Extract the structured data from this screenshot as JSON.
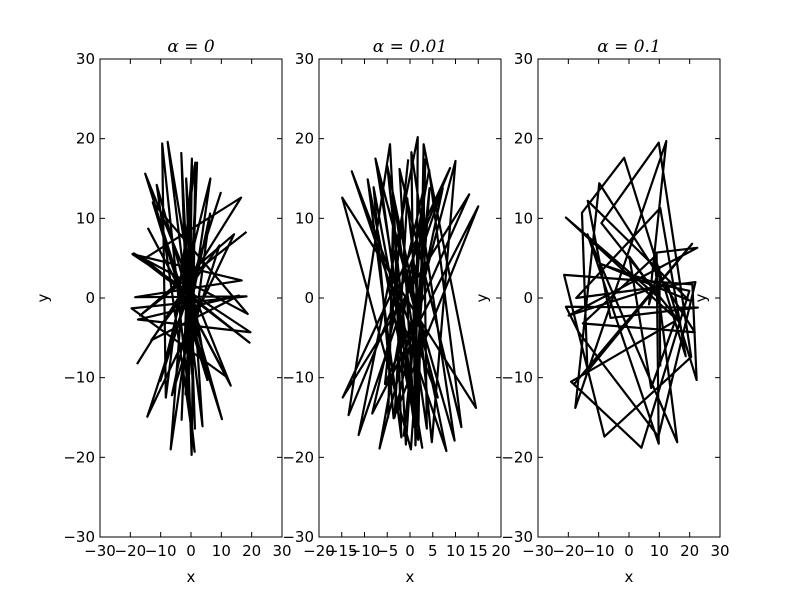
{
  "figure": {
    "background": "#ffffff",
    "line_color": "#000000"
  },
  "chart_data": [
    {
      "type": "line",
      "title": "α = 0",
      "xlabel": "x",
      "ylabel": "y",
      "xlim": [
        -30,
        30
      ],
      "ylim": [
        -30,
        30
      ],
      "xticks": [
        -30,
        -20,
        -10,
        0,
        10,
        20,
        30
      ],
      "yticks": [
        -30,
        -20,
        -10,
        0,
        10,
        20,
        30
      ],
      "grid": false,
      "series": [
        {
          "x": [
            -17.8,
            16.5,
            -15.5,
            19.3,
            -18.9,
            18.7,
            -12.6,
            5.4,
            -7.7,
            3.8,
            -1.6,
            1.3,
            -3.2,
            0.2,
            1.4,
            -8.3,
            -9.5,
            1.2,
            -11.3,
            10.2,
            -15.1,
            13.1,
            -14.1,
            11.7,
            -19.6,
            18.3,
            -18.4,
            16.7,
            -19.3,
            19.6,
            -17.5,
            15.8,
            -13.1,
            9.4,
            -6.3,
            6.3,
            -1.8,
            2.0,
            -0.6,
            0.3,
            -3.1,
            0.4,
            -6.7,
            6.4,
            -10.1,
            9.8,
            -14.4,
            14.2,
            -16.8,
            18.3
          ],
          "y": [
            -8.3,
            12.6,
            4.9,
            -5.6,
            5.6,
            -2.0,
            12.0,
            -10.3,
            19.6,
            -16.1,
            15.0,
            -16.4,
            18.2,
            -19.7,
            17.0,
            -12.5,
            19.4,
            -19.3,
            14.2,
            -15.2,
            15.6,
            -11.0,
            8.7,
            -9.9,
            -1.3,
            0.2,
            0.1,
            2.2,
            5.5,
            -4.3,
            -2.7,
            0.3,
            -5.3,
            6.6,
            -12.2,
            10.6,
            -12.1,
            17.0,
            -9.6,
            17.5,
            -15.3,
            16.6,
            -19.0,
            15.0,
            -10.4,
            13.2,
            -14.9,
            8.0,
            -2.2,
            8.3
          ]
        }
      ]
    },
    {
      "type": "line",
      "title": "α = 0.01",
      "xlabel": "x",
      "ylabel": "y",
      "xlim": [
        -20,
        20
      ],
      "ylim": [
        -30,
        30
      ],
      "xticks": [
        -20,
        -15,
        -10,
        -5,
        0,
        5,
        10,
        15,
        20
      ],
      "yticks": [
        -30,
        -20,
        -10,
        0,
        10,
        20,
        30
      ],
      "grid": false,
      "series": [
        {
          "x": [
            -0.4,
            -5.5,
            13.0,
            -14.8,
            8.8,
            -13.5,
            -4.4,
            -0.9,
            3.4,
            1.2,
            0.3,
            9.8,
            -6.5,
            1.0,
            -2.3,
            11.3,
            4.2,
            -6.7,
            10.0,
            4.8,
            -0.6,
            -3.4,
            7.2,
            -11.3,
            1.7,
            1.3,
            -5.0,
            8.0,
            -12.8,
            6.1,
            -7.6,
            2.7,
            -8.0,
            -3.6,
            15.0,
            -8.3,
            3.0,
            3.7,
            -3.6,
            -4.8,
            -3.5,
            -1.9,
            -9.3,
            1.8,
            3.0,
            14.5,
            -14.9,
            0.2,
            4.3,
            -1.4
          ],
          "y": [
            17.4,
            -10.8,
            13.0,
            -12.5,
            16.3,
            -14.7,
            19.3,
            -18.4,
            17.4,
            -18.5,
            18.3,
            -17.9,
            14.8,
            -16.2,
            16.2,
            -16.2,
            16.1,
            -18.9,
            17.2,
            -18.1,
            12.5,
            -15.0,
            13.8,
            -17.2,
            20.2,
            -17.1,
            16.6,
            -19.2,
            15.9,
            -12.5,
            17.5,
            -18.8,
            13.9,
            -15.1,
            11.5,
            -14.5,
            13.7,
            -16.4,
            12.6,
            -15.0,
            11.6,
            -17.5,
            14.9,
            -17.8,
            19.3,
            -13.8,
            12.6,
            -19.0,
            13.8,
            -17.4
          ]
        }
      ]
    },
    {
      "type": "line",
      "title": "α = 0.1",
      "xlabel": "x",
      "ylabel": "y",
      "xlim": [
        -30,
        30
      ],
      "ylim": [
        -30,
        30
      ],
      "xticks": [
        -30,
        -20,
        -10,
        0,
        10,
        20,
        30
      ],
      "yticks": [
        -30,
        -20,
        -10,
        0,
        10,
        20,
        30
      ],
      "grid": false,
      "series": [
        {
          "x": [
            -18.3,
            20.8,
            -13.7,
            -15.5,
            -1.6,
            18.7,
            10.3,
            -17.4,
            21.9,
            9.7,
            -16.6,
            -20.8,
            22.7,
            -6.1,
            -13.6,
            19.8,
            -9.5,
            10.1,
            19.9,
            4.1,
            -19.1,
            15.2,
            7.3,
            0.1,
            10.0,
            -20.8,
            16.9,
            -9.1,
            9.8,
            20.5,
            -8.1,
            -21.4,
            20.9,
            22.3,
            12.6,
            -19.9,
            22.5,
            9.1,
            9.8,
            -13.7,
            15.9,
            8.2,
            -15.2,
            21.7,
            -9.8,
            -17.7,
            12.3,
            6.6,
            10.0,
            10.3
          ],
          "y": [
            -10.9,
            6.8,
            -9.2,
            10.7,
            17.6,
            -7.3,
            11.3,
            0.0,
            2.0,
            -17.4,
            -4.3,
            -1.1,
            -1.2,
            -2.5,
            12.2,
            -0.3,
            4.3,
            1.7,
            0.9,
            -18.8,
            -10.5,
            -2.9,
            -11.3,
            5.2,
            0.0,
            10.1,
            -3.1,
            9.4,
            19.5,
            -7.4,
            -17.4,
            2.9,
            1.7,
            -10.3,
            1.8,
            -2.2,
            6.3,
            5.7,
            -18.3,
            8.0,
            -18.1,
            5.1,
            -3.2,
            -4.3,
            14.4,
            -13.8,
            19.7,
            -0.8,
            3.9,
            -8.6
          ]
        }
      ]
    }
  ]
}
